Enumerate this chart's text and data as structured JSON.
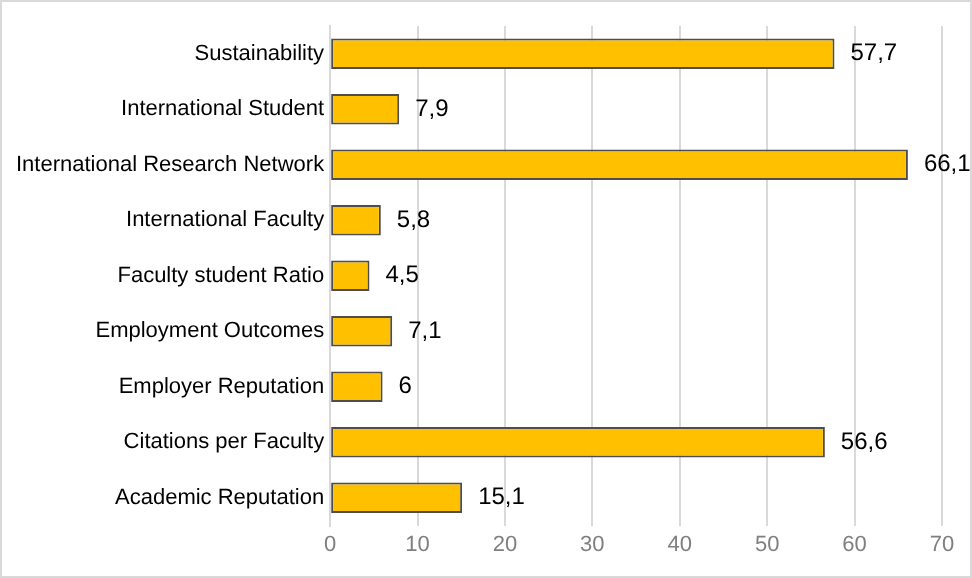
{
  "chart_data": {
    "type": "bar",
    "orientation": "horizontal",
    "categories": [
      "Sustainability",
      "International Student",
      "International Research Network",
      "International Faculty",
      "Faculty student Ratio",
      "Employment Outcomes",
      "Employer Reputation",
      "Citations per Faculty",
      "Academic Reputation"
    ],
    "values": [
      57.7,
      7.9,
      66.1,
      5.8,
      4.5,
      7.1,
      6,
      56.6,
      15.1
    ],
    "value_labels": [
      "57,7",
      "7,9",
      "66,1",
      "5,8",
      "4,5",
      "7,1",
      "6",
      "56,6",
      "15,1"
    ],
    "color": "#ffc000",
    "xlim": [
      0,
      70
    ],
    "xticks": [
      0,
      10,
      20,
      30,
      40,
      50,
      60,
      70
    ],
    "grid": "x",
    "legend": false
  }
}
